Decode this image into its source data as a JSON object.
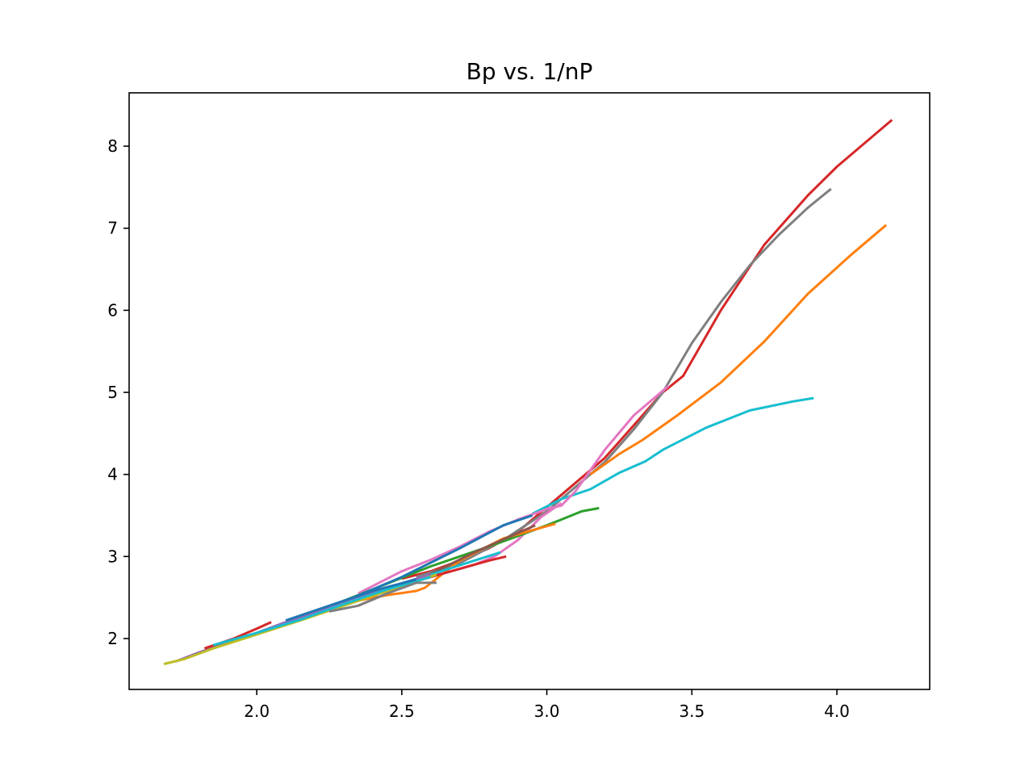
{
  "chart_data": {
    "type": "line",
    "title": "Bp vs. 1/nP",
    "xlabel": "",
    "ylabel": "",
    "xlim": [
      1.56,
      4.32
    ],
    "ylim": [
      1.38,
      8.65
    ],
    "xticks": [
      2.0,
      2.5,
      3.0,
      3.5,
      4.0
    ],
    "xtick_labels": [
      "2.0",
      "2.5",
      "3.0",
      "3.5",
      "4.0"
    ],
    "yticks": [
      2,
      3,
      4,
      5,
      6,
      7,
      8
    ],
    "ytick_labels": [
      "2",
      "3",
      "4",
      "5",
      "6",
      "7",
      "8"
    ],
    "grid": false,
    "legend": false,
    "series": [
      {
        "color": "#d62728",
        "x": [
          2.5,
          2.6,
          2.7,
          2.8,
          2.9,
          3.0,
          3.1,
          3.2,
          3.3,
          3.4,
          3.47,
          3.6,
          3.75,
          3.9,
          4.0,
          4.1,
          4.19
        ],
        "y": [
          2.73,
          2.82,
          2.95,
          3.1,
          3.3,
          3.6,
          3.9,
          4.2,
          4.6,
          5.0,
          5.2,
          6.0,
          6.8,
          7.4,
          7.75,
          8.05,
          8.32
        ]
      },
      {
        "color": "#7f7f7f",
        "x": [
          2.55,
          2.7,
          2.85,
          3.0,
          3.1,
          3.2,
          3.3,
          3.4,
          3.5,
          3.6,
          3.7,
          3.8,
          3.9,
          3.98
        ],
        "y": [
          2.75,
          2.92,
          3.2,
          3.55,
          3.85,
          4.15,
          4.55,
          5.0,
          5.6,
          6.1,
          6.55,
          6.92,
          7.25,
          7.48
        ]
      },
      {
        "color": "#ff7f0e",
        "x": [
          3.15,
          3.25,
          3.33,
          3.45,
          3.6,
          3.75,
          3.9,
          4.05,
          4.17
        ],
        "y": [
          4.0,
          4.25,
          4.42,
          4.72,
          5.12,
          5.62,
          6.2,
          6.68,
          7.04
        ]
      },
      {
        "color": "#17becf",
        "x": [
          2.95,
          3.05,
          3.15,
          3.25,
          3.34,
          3.4,
          3.55,
          3.7,
          3.85,
          3.92
        ],
        "y": [
          3.52,
          3.7,
          3.82,
          4.02,
          4.16,
          4.3,
          4.57,
          4.78,
          4.89,
          4.93
        ]
      },
      {
        "color": "#e377c2",
        "x": [
          2.35,
          2.5,
          2.6,
          2.7,
          2.8,
          2.9,
          2.98,
          3.0,
          3.05,
          3.1,
          3.2,
          3.3,
          3.42
        ],
        "y": [
          2.55,
          2.82,
          2.96,
          3.12,
          3.3,
          3.45,
          3.55,
          3.58,
          3.62,
          3.8,
          4.3,
          4.72,
          5.08
        ]
      },
      {
        "color": "#e377c2",
        "x": [
          2.55,
          2.65,
          2.75,
          2.82,
          2.9,
          2.98,
          3.05
        ],
        "y": [
          2.72,
          2.8,
          2.9,
          3.0,
          3.2,
          3.48,
          3.65
        ]
      },
      {
        "color": "#2ca02c",
        "x": [
          2.2,
          2.4,
          2.6,
          2.8,
          3.0,
          3.05,
          3.12,
          3.18
        ],
        "y": [
          2.32,
          2.6,
          2.88,
          3.12,
          3.38,
          3.45,
          3.55,
          3.59
        ]
      },
      {
        "color": "#ff7f0e",
        "x": [
          2.3,
          2.45,
          2.55,
          2.58,
          2.7,
          2.85,
          3.0,
          3.03
        ],
        "y": [
          2.43,
          2.53,
          2.58,
          2.62,
          2.95,
          3.22,
          3.37,
          3.4
        ]
      },
      {
        "color": "#1f77b4",
        "x": [
          2.3,
          2.5,
          2.7,
          2.85,
          2.95
        ],
        "y": [
          2.45,
          2.75,
          3.1,
          3.38,
          3.5
        ]
      },
      {
        "color": "#8c564b",
        "x": [
          2.35,
          2.55,
          2.75,
          2.96
        ],
        "y": [
          2.4,
          2.7,
          3.05,
          3.38
        ]
      },
      {
        "color": "#17becf",
        "x": [
          2.45,
          2.6,
          2.75,
          2.84
        ],
        "y": [
          2.62,
          2.78,
          2.95,
          3.05
        ]
      },
      {
        "color": "#d62728",
        "x": [
          2.55,
          2.7,
          2.8,
          2.86
        ],
        "y": [
          2.7,
          2.85,
          2.95,
          3.0
        ]
      },
      {
        "color": "#9467bd",
        "x": [
          1.72,
          1.8,
          1.9,
          2.0,
          2.1,
          2.2,
          2.3,
          2.45,
          2.6
        ],
        "y": [
          1.72,
          1.83,
          1.95,
          2.07,
          2.2,
          2.32,
          2.45,
          2.62,
          2.78
        ]
      },
      {
        "color": "#bcbd22",
        "x": [
          1.68,
          1.75,
          1.85,
          2.0,
          2.15,
          2.3,
          2.45,
          2.62
        ],
        "y": [
          1.69,
          1.75,
          1.88,
          2.05,
          2.22,
          2.4,
          2.58,
          2.78
        ]
      },
      {
        "color": "#d62728",
        "x": [
          1.82,
          1.92,
          2.0,
          2.05
        ],
        "y": [
          1.88,
          2.0,
          2.12,
          2.2
        ]
      },
      {
        "color": "#17becf",
        "x": [
          1.85,
          2.0,
          2.15,
          2.3,
          2.45,
          2.6
        ],
        "y": [
          1.92,
          2.07,
          2.23,
          2.42,
          2.6,
          2.75
        ]
      },
      {
        "color": "#1f77b4",
        "x": [
          2.1,
          2.25,
          2.4,
          2.55
        ],
        "y": [
          2.22,
          2.4,
          2.58,
          2.72
        ]
      },
      {
        "color": "#7f7f7f",
        "x": [
          2.25,
          2.35,
          2.45,
          2.55,
          2.62
        ],
        "y": [
          2.33,
          2.4,
          2.55,
          2.68,
          2.68
        ]
      }
    ]
  }
}
